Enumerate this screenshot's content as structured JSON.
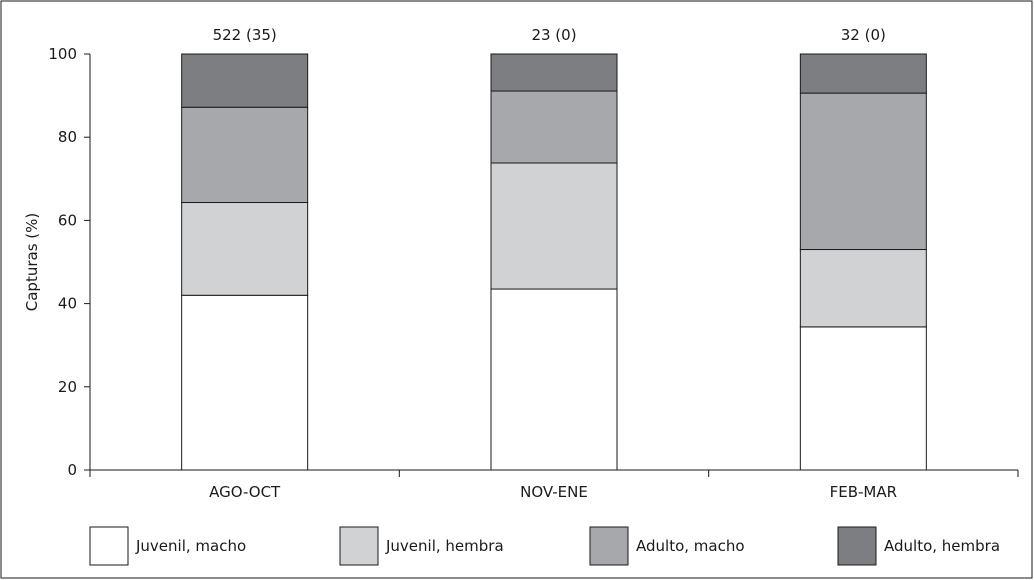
{
  "chart_data": {
    "type": "bar",
    "stacked": true,
    "categories": [
      "AGO-OCT",
      "NOV-ENE",
      "FEB-MAR"
    ],
    "bar_labels": [
      "522 (35)",
      "23 (0)",
      "32 (0)"
    ],
    "ylabel": "Capturas (%)",
    "xlabel": "",
    "ylim": [
      0,
      100
    ],
    "yticks": [
      0,
      20,
      40,
      60,
      80,
      100
    ],
    "grid": false,
    "legend_position": "bottom",
    "series": [
      {
        "name": "Juvenil, macho",
        "color": "#ffffff",
        "values": [
          42,
          43.5,
          34.4
        ]
      },
      {
        "name": "Juvenil, hembra",
        "color": "#d1d2d4",
        "values": [
          22.3,
          30.3,
          18.6
        ]
      },
      {
        "name": "Adulto, macho",
        "color": "#a7a8ab",
        "values": [
          22.9,
          17.3,
          37.6
        ]
      },
      {
        "name": "Adulto, hembra",
        "color": "#7d7e82",
        "values": [
          12.8,
          8.9,
          9.4
        ]
      }
    ]
  }
}
